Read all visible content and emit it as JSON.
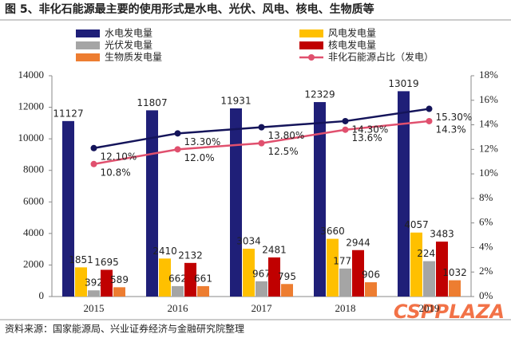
{
  "chart_data": {
    "type": "bar",
    "title": "图 5、非化石能源最主要的使用形式是水电、光伏、风电、核电、生物质等",
    "source": "资料来源：国家能源局、兴业证券经济与金融研究院整理",
    "watermark": "CSPPLAZA",
    "categories": [
      "2015",
      "2016",
      "2017",
      "2018",
      "2019"
    ],
    "ylim": [
      0,
      14000
    ],
    "yticks": [
      0,
      2000,
      4000,
      6000,
      8000,
      10000,
      12000,
      14000
    ],
    "y2lim": [
      0,
      18
    ],
    "y2ticks": [
      {
        "value": 0,
        "label": "0%"
      },
      {
        "value": 2,
        "label": "2%"
      },
      {
        "value": 4,
        "label": "4%"
      },
      {
        "value": 6,
        "label": "6%"
      },
      {
        "value": 8,
        "label": "8%"
      },
      {
        "value": 10,
        "label": "10%"
      },
      {
        "value": 12,
        "label": "12%"
      },
      {
        "value": 14,
        "label": "14%"
      },
      {
        "value": 16,
        "label": "16%"
      },
      {
        "value": 18,
        "label": "18%"
      }
    ],
    "series": [
      {
        "name": "水电发电量",
        "color": "#1f1f78",
        "values": [
          11127,
          11807,
          11931,
          12329,
          13019
        ]
      },
      {
        "name": "风电发电量",
        "color": "#ffc000",
        "values": [
          1851,
          2410,
          3034,
          3660,
          4057
        ]
      },
      {
        "name": "光伏发电量",
        "color": "#a5a5a5",
        "values": [
          392,
          662,
          967,
          1775,
          2243
        ]
      },
      {
        "name": "核电发电量",
        "color": "#c00000",
        "values": [
          1695,
          2132,
          2481,
          2944,
          3483
        ]
      },
      {
        "name": "生物质发电量",
        "color": "#ed7d31",
        "values": [
          589,
          661,
          795,
          906,
          1032
        ]
      },
      {
        "name": "非化石能源占比（发电）",
        "type": "line",
        "axis": "y2",
        "color": "#e0506e",
        "values": [
          10.8,
          12.0,
          12.5,
          13.6,
          14.3
        ],
        "value_labels": [
          "10.8%",
          "12.0%",
          "12.5%",
          "13.6%",
          "14.3%"
        ]
      },
      {
        "type": "line",
        "axis": "y2",
        "color": "#14145a",
        "values": [
          12.1,
          13.3,
          13.8,
          14.3,
          15.3
        ],
        "value_labels": [
          "12.10%",
          "13.30%",
          "13.80%",
          "14.30%",
          "15.30%"
        ]
      }
    ]
  }
}
